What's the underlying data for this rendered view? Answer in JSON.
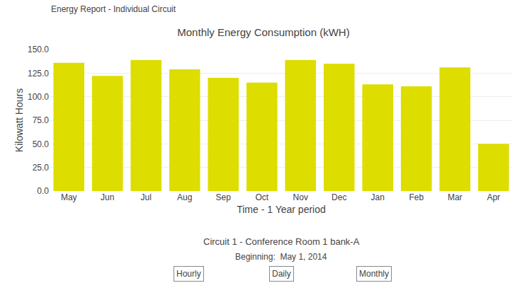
{
  "chart_data": {
    "type": "bar",
    "title": "Monthly Energy Consumption (kWH)",
    "xlabel": "Time - 1 Year period",
    "ylabel": "Kilowatt Hours",
    "categories": [
      "May",
      "Jun",
      "Jul",
      "Aug",
      "Sep",
      "Oct",
      "Nov",
      "Dec",
      "Jan",
      "Feb",
      "Mar",
      "Apr"
    ],
    "values": [
      136,
      122,
      139,
      129,
      120,
      115,
      139,
      135,
      113,
      111,
      131,
      50
    ],
    "color": "#DDDD00",
    "ylim": [
      0,
      150
    ],
    "yticks": [
      {
        "value": 0,
        "label": "0.0"
      },
      {
        "value": 25,
        "label": "25.0"
      },
      {
        "value": 50,
        "label": "50.0"
      },
      {
        "value": 75,
        "label": "75.0"
      },
      {
        "value": 100,
        "label": "100.0"
      },
      {
        "value": 125,
        "label": "125.0"
      },
      {
        "value": 150,
        "label": "150.0"
      }
    ],
    "grid": true,
    "annotations": [
      "Energy Report - Individual Circuit",
      "Circuit 1 - Conference Room 1 bank-A",
      "Beginning:  May 1, 2014",
      "Hourly",
      "Daily",
      "Monthly"
    ]
  }
}
